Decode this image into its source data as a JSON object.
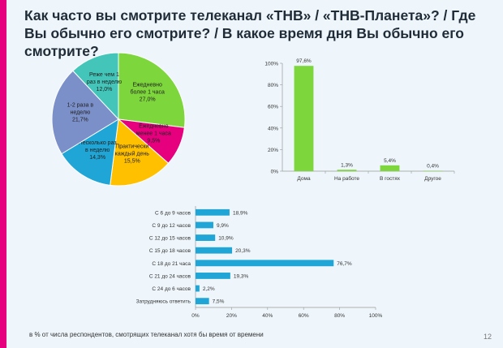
{
  "slide": {
    "title": "Как часто вы смотрите телеканал «ТНВ» / «ТНВ-Планета»? / Где Вы обычно его смотрите? / В какое время дня Вы обычно его смотрите?",
    "footnote": "в % от числа респондентов, смотрящих телеканал хотя бы время от времени",
    "page_number": "12",
    "accent_color": "#e6007e"
  },
  "chart_data": [
    {
      "type": "pie",
      "slices": [
        {
          "lines": [
            "Ежедневно",
            "более 1 часа",
            "27,0%"
          ],
          "value": 27.0,
          "color": "#7dd63c"
        },
        {
          "lines": [
            "Ежедневно",
            "менее 1 часа",
            "9,5%"
          ],
          "value": 9.5,
          "color": "#e6007e"
        },
        {
          "lines": [
            "Практически",
            "каждый день",
            "15,5%"
          ],
          "value": 15.5,
          "color": "#ffc000"
        },
        {
          "lines": [
            "Несколько раз",
            "в неделю",
            "14,3%"
          ],
          "value": 14.3,
          "color": "#1fa6d6"
        },
        {
          "lines": [
            "1-2 раза в",
            "неделю",
            "21,7%"
          ],
          "value": 21.7,
          "color": "#7b8fc9"
        },
        {
          "lines": [
            "Реже чем 1",
            "раз в неделю",
            "12,0%"
          ],
          "value": 12.0,
          "color": "#43c6b9"
        }
      ]
    },
    {
      "type": "bar",
      "categories": [
        "Дома",
        "На работе",
        "В гостях",
        "Другое"
      ],
      "values": [
        97.6,
        1.3,
        5.4,
        0.4
      ],
      "value_labels": [
        "97,6%",
        "1,3%",
        "5,4%",
        "0,4%"
      ],
      "ylim": [
        0,
        100
      ],
      "yticks": [
        "0%",
        "20%",
        "40%",
        "60%",
        "80%",
        "100%"
      ],
      "color": "#7dd63c"
    },
    {
      "type": "bar",
      "orientation": "horizontal",
      "categories": [
        "С 6 до 9 часов",
        "С 9 до 12 часов",
        "С 12 до 15 часов",
        "С 15 до 18 часов",
        "С 18 до 21 часа",
        "С 21 до 24 часов",
        "С 24 до 6 часов",
        "Затрудняюсь ответить"
      ],
      "values": [
        18.9,
        9.9,
        10.9,
        20.3,
        76.7,
        19.3,
        2.2,
        7.5
      ],
      "value_labels": [
        "18,9%",
        "9,9%",
        "10,9%",
        "20,3%",
        "76,7%",
        "19,3%",
        "2,2%",
        "7,5%"
      ],
      "xlim": [
        0,
        100
      ],
      "xticks": [
        "0%",
        "20%",
        "40%",
        "60%",
        "80%",
        "100%"
      ],
      "color": "#1fa6d6"
    }
  ]
}
